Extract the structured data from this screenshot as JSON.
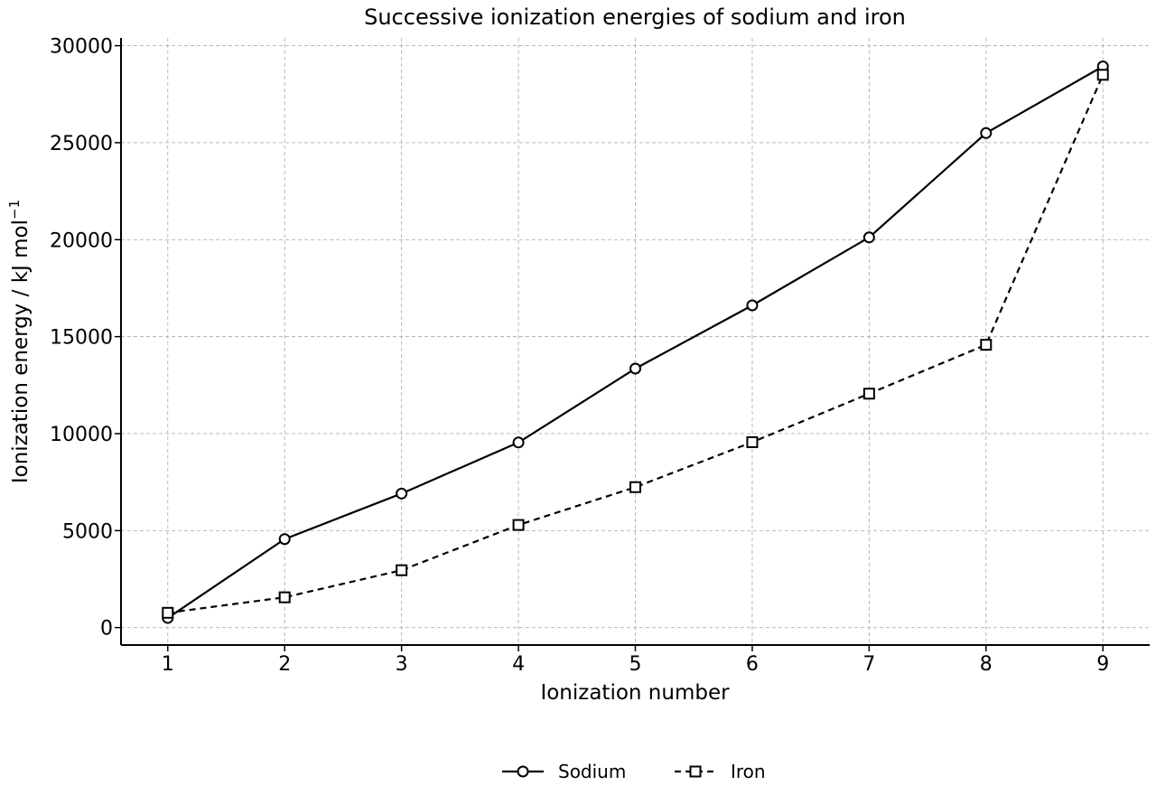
{
  "chart_data": {
    "type": "line",
    "title": "Successive ionization energies of sodium and iron",
    "xlabel": "Ionization number",
    "ylabel": "Ionization energy / kJ mol",
    "ylabel_sup": "−1",
    "x": [
      1,
      2,
      3,
      4,
      5,
      6,
      7,
      8,
      9
    ],
    "xlim": [
      0.6,
      9.4
    ],
    "ylim": [
      -900,
      30400
    ],
    "yticks": [
      0,
      5000,
      10000,
      15000,
      20000,
      25000,
      30000
    ],
    "grid": true,
    "legend_position": "bottom-center",
    "series": [
      {
        "name": "Sodium",
        "marker": "circle",
        "line_style": "solid",
        "color": "#000000",
        "values": [
          496,
          4562,
          6910,
          9543,
          13354,
          16613,
          20117,
          25496,
          28932
        ]
      },
      {
        "name": "Iron",
        "marker": "square",
        "line_style": "dashed",
        "color": "#000000",
        "values": [
          762,
          1561,
          2957,
          5290,
          7240,
          9560,
          12060,
          14580,
          28500
        ]
      }
    ]
  }
}
